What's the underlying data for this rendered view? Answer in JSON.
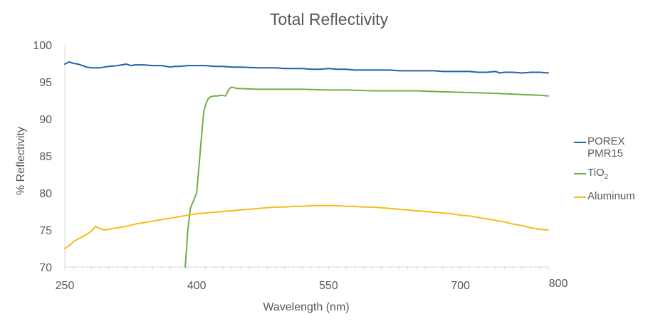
{
  "chart_data": {
    "type": "line",
    "title": "Total Reflectivity",
    "xlabel": "Wavelength (nm)",
    "ylabel": "% Reflectivity",
    "xlim": [
      250,
      800
    ],
    "ylim": [
      70,
      100
    ],
    "xticks": [
      250,
      400,
      550,
      700,
      800
    ],
    "yticks": [
      70,
      75,
      80,
      85,
      90,
      95,
      100
    ],
    "grid": false,
    "legend": "right",
    "series": [
      {
        "name": "POREX PMR15",
        "color": "#1f63a8",
        "x": [
          250,
          255,
          260,
          265,
          270,
          275,
          280,
          285,
          290,
          300,
          310,
          320,
          325,
          330,
          340,
          350,
          360,
          370,
          375,
          380,
          390,
          400,
          410,
          420,
          430,
          440,
          450,
          470,
          490,
          500,
          510,
          520,
          530,
          540,
          550,
          560,
          570,
          580,
          590,
          600,
          610,
          620,
          630,
          640,
          650,
          660,
          670,
          680,
          690,
          700,
          710,
          720,
          730,
          740,
          745,
          750,
          760,
          770,
          780,
          790,
          800
        ],
        "values": [
          97.4,
          97.7,
          97.5,
          97.4,
          97.2,
          97.0,
          96.9,
          96.9,
          96.9,
          97.1,
          97.2,
          97.4,
          97.2,
          97.3,
          97.3,
          97.2,
          97.2,
          97.0,
          97.1,
          97.1,
          97.2,
          97.2,
          97.2,
          97.1,
          97.1,
          97.0,
          97.0,
          96.9,
          96.9,
          96.8,
          96.8,
          96.8,
          96.7,
          96.7,
          96.8,
          96.7,
          96.7,
          96.6,
          96.6,
          96.6,
          96.6,
          96.6,
          96.5,
          96.5,
          96.5,
          96.5,
          96.5,
          96.4,
          96.4,
          96.4,
          96.4,
          96.3,
          96.3,
          96.4,
          96.2,
          96.3,
          96.3,
          96.2,
          96.3,
          96.3,
          96.2
        ]
      },
      {
        "name": "TiO2",
        "color": "#70ad47",
        "x": [
          387,
          390,
          393,
          400,
          405,
          408,
          411,
          413,
          416,
          420,
          424,
          428,
          433,
          437,
          440,
          443,
          447,
          450,
          470,
          500,
          520,
          550,
          570,
          600,
          630,
          650,
          670,
          700,
          730,
          750,
          770,
          790,
          800
        ],
        "values": [
          70,
          75,
          78,
          80,
          87,
          91,
          92.2,
          92.7,
          93,
          93.1,
          93.1,
          93.2,
          93.1,
          94.1,
          94.3,
          94.2,
          94.1,
          94.1,
          94.0,
          94.0,
          94.0,
          93.9,
          93.9,
          93.8,
          93.8,
          93.8,
          93.7,
          93.6,
          93.5,
          93.4,
          93.3,
          93.2,
          93.1
        ]
      },
      {
        "name": "Aluminum",
        "color": "#f3bc1b",
        "x": [
          250,
          255,
          260,
          265,
          270,
          275,
          280,
          285,
          290,
          295,
          300,
          310,
          320,
          330,
          340,
          350,
          360,
          370,
          380,
          390,
          400,
          410,
          420,
          430,
          440,
          450,
          460,
          470,
          480,
          490,
          500,
          510,
          520,
          530,
          540,
          550,
          560,
          570,
          580,
          590,
          600,
          610,
          620,
          630,
          640,
          650,
          660,
          670,
          680,
          690,
          700,
          710,
          720,
          730,
          740,
          750,
          760,
          770,
          780,
          790,
          800
        ],
        "values": [
          72.5,
          72.9,
          73.4,
          73.8,
          74.1,
          74.4,
          74.8,
          75.5,
          75.2,
          75.0,
          75.1,
          75.3,
          75.5,
          75.8,
          76.0,
          76.2,
          76.4,
          76.6,
          76.8,
          77.0,
          77.2,
          77.3,
          77.4,
          77.5,
          77.6,
          77.7,
          77.8,
          77.9,
          78.0,
          78.1,
          78.1,
          78.2,
          78.2,
          78.3,
          78.3,
          78.3,
          78.3,
          78.2,
          78.2,
          78.1,
          78.1,
          78.0,
          77.9,
          77.8,
          77.7,
          77.6,
          77.5,
          77.4,
          77.3,
          77.2,
          77.0,
          76.9,
          76.7,
          76.5,
          76.3,
          76.1,
          75.8,
          75.6,
          75.3,
          75.1,
          75.0
        ]
      }
    ]
  },
  "legend": {
    "items": [
      {
        "label": "POREX PMR15",
        "color": "#1f63a8"
      },
      {
        "label_main": "TiO",
        "label_sub": "2",
        "color": "#70ad47"
      },
      {
        "label": "Aluminum",
        "color": "#f3bc1b"
      }
    ]
  }
}
